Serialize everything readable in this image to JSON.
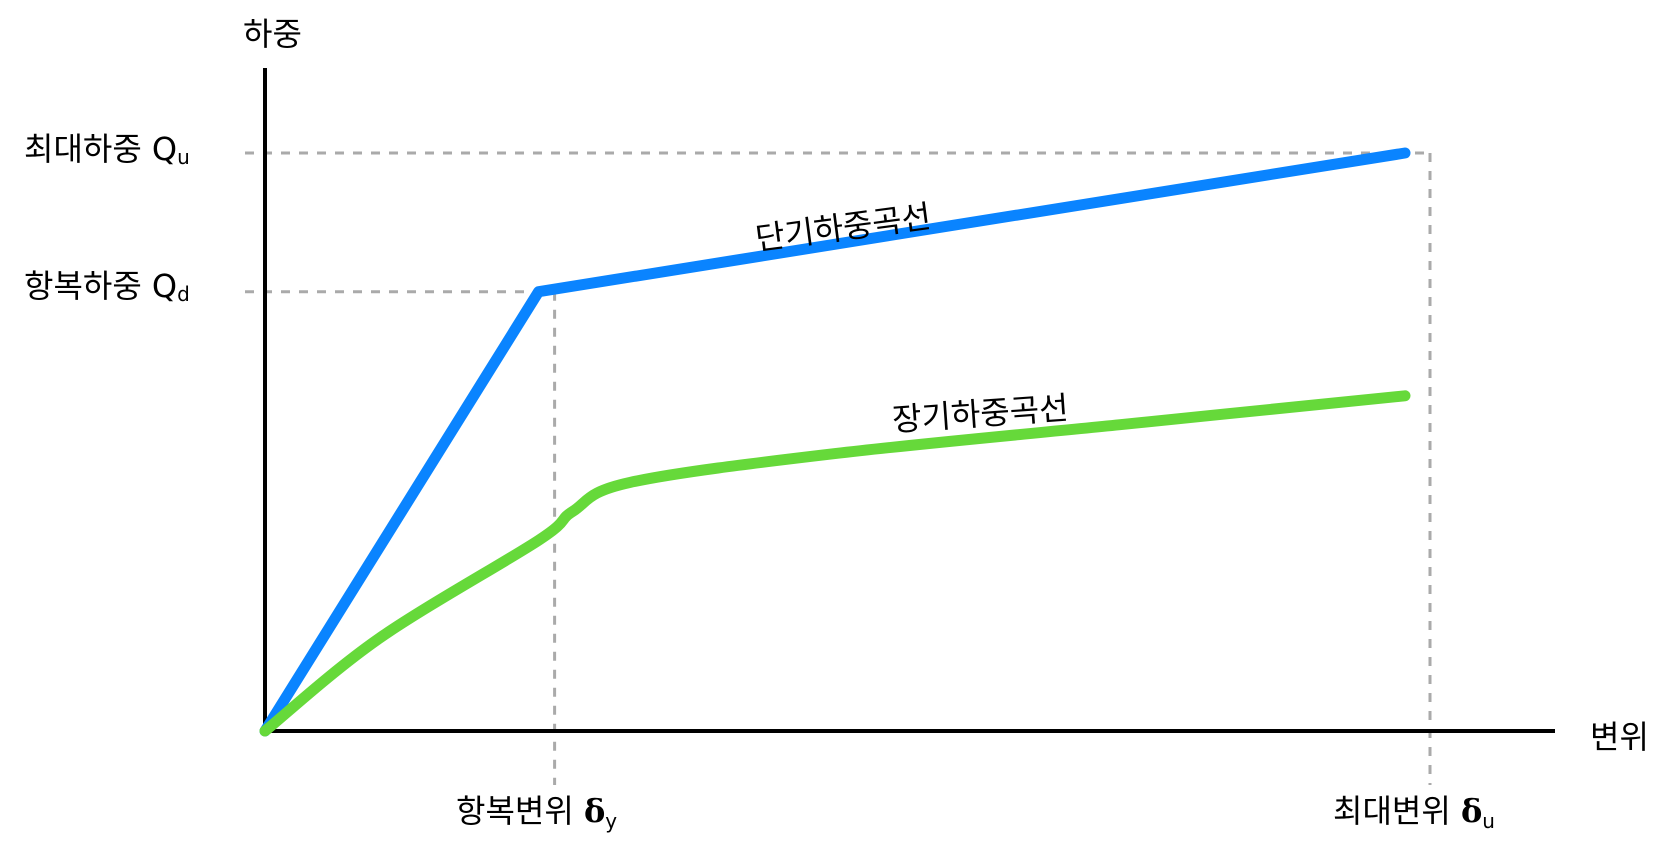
{
  "chart_data": {
    "type": "line",
    "title": "",
    "ylabel": "하중",
    "xlabel": "변위",
    "xlim": [
      0,
      1
    ],
    "ylim": [
      0,
      1
    ],
    "grid": false,
    "y_markers": [
      {
        "label": "최대하중 Q",
        "sub": "u",
        "value": 1.0
      },
      {
        "label": "항복하중 Q",
        "sub": "d",
        "value": 0.76
      }
    ],
    "x_markers": [
      {
        "label": "항복변위 ",
        "symbol": "δ",
        "sub": "y",
        "value": 0.24
      },
      {
        "label": "최대변위 ",
        "symbol": "δ",
        "sub": "u",
        "value": 1.0
      }
    ],
    "series": [
      {
        "name": "단기하중곡선",
        "color": "#0a84ff",
        "x": [
          0,
          0.24,
          1.0
        ],
        "y": [
          0,
          0.76,
          1.0
        ]
      },
      {
        "name": "장기하중곡선",
        "color": "#66d93a",
        "x": [
          0,
          0.1,
          0.24,
          0.27,
          0.32,
          0.5,
          0.75,
          1.0
        ],
        "y": [
          0,
          0.16,
          0.33,
          0.38,
          0.43,
          0.48,
          0.53,
          0.58
        ]
      }
    ]
  }
}
